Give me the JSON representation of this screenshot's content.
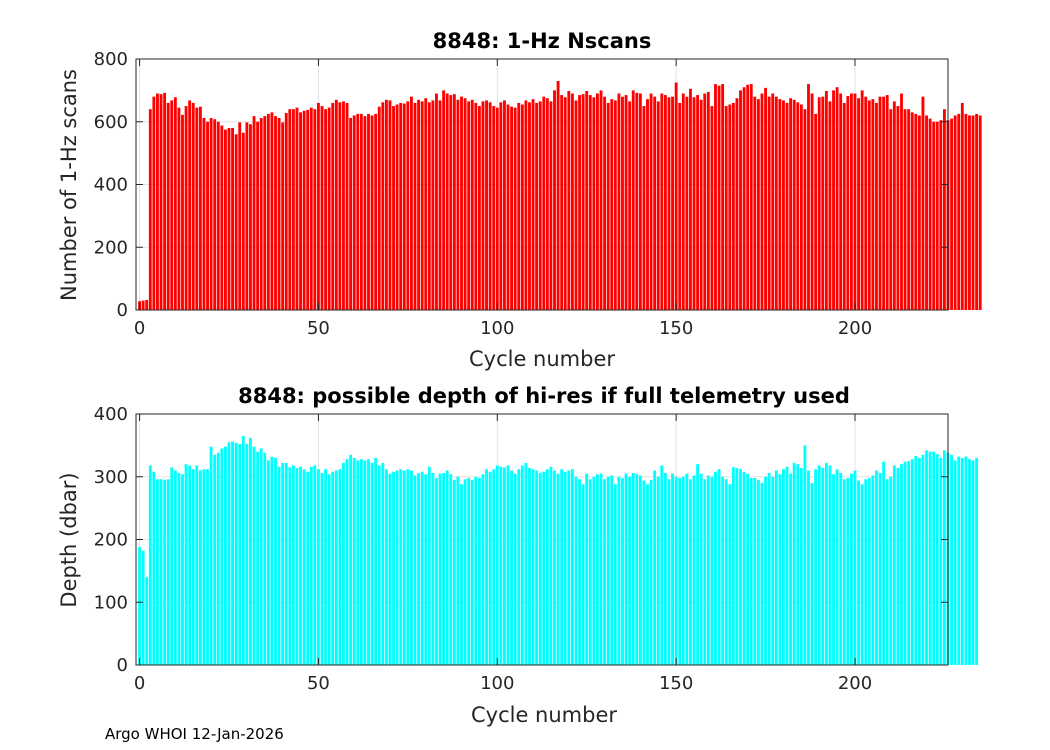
{
  "chart_data": [
    {
      "type": "bar",
      "title": "8848: 1-Hz Nscans",
      "xlabel": "Cycle number",
      "ylabel": "Number of 1-Hz scans",
      "xlim": [
        -1,
        226
      ],
      "ylim": [
        0,
        800
      ],
      "xticks": [
        0,
        50,
        100,
        150,
        200
      ],
      "xtick_labels": [
        "0",
        "50",
        "100",
        "150",
        "200"
      ],
      "yticks": [
        0,
        200,
        400,
        600,
        800
      ],
      "ytick_labels": [
        "0",
        "200",
        "400",
        "600",
        "800"
      ],
      "grid": true,
      "color": "#ff0000",
      "x_start": 0,
      "values": [
        28,
        30,
        32,
        640,
        680,
        690,
        688,
        692,
        660,
        668,
        678,
        645,
        622,
        650,
        668,
        660,
        645,
        648,
        612,
        600,
        612,
        608,
        600,
        588,
        575,
        580,
        580,
        560,
        598,
        565,
        598,
        592,
        618,
        600,
        612,
        618,
        625,
        630,
        618,
        612,
        598,
        628,
        640,
        640,
        645,
        630,
        635,
        638,
        645,
        640,
        660,
        650,
        640,
        645,
        660,
        670,
        662,
        665,
        660,
        612,
        620,
        625,
        625,
        618,
        625,
        620,
        625,
        648,
        662,
        670,
        668,
        650,
        655,
        660,
        658,
        665,
        680,
        660,
        670,
        665,
        675,
        662,
        668,
        690,
        668,
        700,
        690,
        685,
        688,
        670,
        680,
        675,
        665,
        670,
        660,
        650,
        665,
        668,
        662,
        650,
        645,
        662,
        668,
        655,
        648,
        645,
        660,
        655,
        668,
        662,
        672,
        660,
        665,
        680,
        675,
        665,
        700,
        730,
        685,
        678,
        698,
        690,
        668,
        685,
        688,
        698,
        685,
        678,
        690,
        700,
        680,
        660,
        672,
        668,
        690,
        680,
        685,
        665,
        700,
        692,
        690,
        650,
        672,
        690,
        680,
        665,
        690,
        685,
        678,
        680,
        725,
        660,
        690,
        680,
        705,
        678,
        685,
        670,
        690,
        695,
        650,
        720,
        715,
        720,
        650,
        655,
        660,
        675,
        700,
        710,
        718,
        720,
        680,
        672,
        690,
        708,
        680,
        690,
        680,
        672,
        668,
        660,
        675,
        670,
        662,
        655,
        640,
        720,
        690,
        625,
        678,
        680,
        698,
        665,
        700,
        710,
        690,
        660,
        682,
        690,
        690,
        675,
        700,
        680,
        668,
        672,
        660,
        680,
        680,
        685,
        640,
        665,
        650,
        690,
        640,
        640,
        630,
        625,
        620,
        680,
        620,
        610,
        600,
        600,
        605,
        640,
        605,
        610,
        620,
        625,
        660,
        625,
        620,
        620,
        625,
        620
      ]
    },
    {
      "type": "bar",
      "title": "8848: possible depth of hi-res if full telemetry used",
      "xlabel": "Cycle number",
      "ylabel": "Depth (dbar)",
      "xlim": [
        -1,
        226
      ],
      "ylim": [
        0,
        400
      ],
      "xticks": [
        0,
        50,
        100,
        150,
        200
      ],
      "xtick_labels": [
        "0",
        "50",
        "100",
        "150",
        "200"
      ],
      "yticks": [
        0,
        100,
        200,
        300,
        400
      ],
      "ytick_labels": [
        "0",
        "100",
        "200",
        "300",
        "400"
      ],
      "grid": true,
      "color": "#00ffff",
      "x_start": 0,
      "values": [
        188,
        182,
        140,
        318,
        308,
        296,
        296,
        295,
        296,
        315,
        310,
        306,
        304,
        320,
        318,
        312,
        318,
        310,
        312,
        312,
        348,
        335,
        338,
        345,
        348,
        355,
        356,
        354,
        352,
        365,
        352,
        362,
        348,
        340,
        345,
        338,
        326,
        332,
        330,
        316,
        322,
        322,
        315,
        318,
        314,
        316,
        312,
        308,
        316,
        318,
        312,
        306,
        312,
        304,
        308,
        310,
        312,
        322,
        328,
        335,
        330,
        326,
        328,
        326,
        328,
        322,
        330,
        318,
        322,
        312,
        305,
        308,
        310,
        312,
        310,
        312,
        310,
        302,
        306,
        308,
        304,
        316,
        306,
        298,
        305,
        306,
        310,
        304,
        295,
        300,
        288,
        296,
        298,
        295,
        300,
        298,
        304,
        312,
        308,
        312,
        318,
        316,
        315,
        318,
        310,
        305,
        312,
        318,
        322,
        314,
        312,
        310,
        306,
        308,
        312,
        316,
        310,
        305,
        312,
        308,
        310,
        312,
        300,
        296,
        288,
        305,
        296,
        300,
        304,
        305,
        296,
        300,
        302,
        288,
        300,
        298,
        305,
        300,
        306,
        304,
        302,
        294,
        288,
        295,
        310,
        300,
        318,
        306,
        296,
        305,
        300,
        298,
        300,
        305,
        296,
        302,
        320,
        305,
        296,
        302,
        300,
        308,
        312,
        300,
        296,
        288,
        315,
        314,
        312,
        308,
        305,
        298,
        298,
        295,
        290,
        300,
        306,
        300,
        310,
        304,
        312,
        316,
        305,
        322,
        320,
        314,
        350,
        310,
        290,
        312,
        318,
        314,
        322,
        318,
        304,
        312,
        306,
        296,
        298,
        305,
        310,
        294,
        288,
        296,
        298,
        302,
        310,
        306,
        324,
        296,
        300,
        318,
        314,
        320,
        324,
        325,
        328,
        333,
        330,
        335,
        342,
        340,
        340,
        336,
        330,
        342,
        338,
        335,
        326,
        332,
        330,
        332,
        328,
        326,
        330
      ]
    }
  ],
  "footer": "Argo WHOI 12-Jan-2026"
}
